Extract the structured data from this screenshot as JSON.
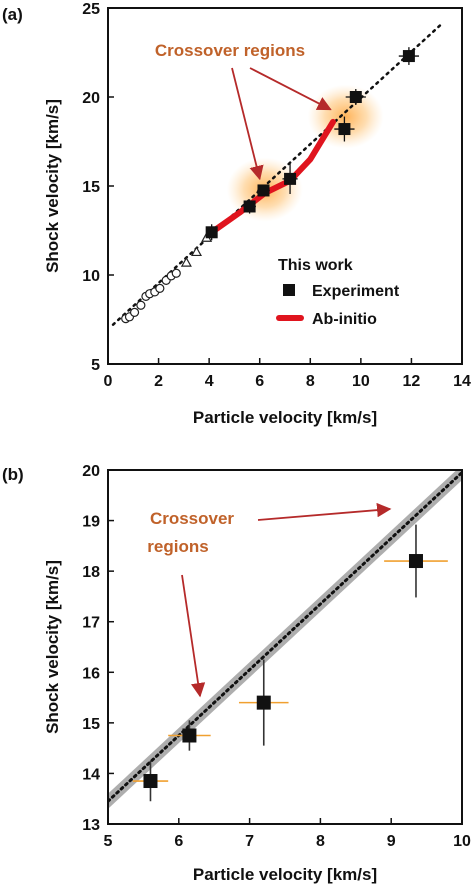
{
  "chart_data": [
    {
      "panel_label": "(a)",
      "type": "scatter",
      "xlabel": "Particle velocity [km/s]",
      "ylabel": "Shock velocity [km/s]",
      "xlim": [
        0,
        14
      ],
      "ylim": [
        5,
        25
      ],
      "xticks": [
        0,
        2,
        4,
        6,
        8,
        10,
        12,
        14
      ],
      "yticks": [
        5,
        10,
        15,
        20,
        25
      ],
      "annotation": "Crossover regions",
      "legend": {
        "title": "This work",
        "placement": "bottom-right",
        "entries": [
          {
            "label": "Experiment",
            "marker": "square",
            "color": "#111111"
          },
          {
            "label": "Ab-initio",
            "marker": "line",
            "color": "#e0141e"
          }
        ]
      },
      "colors": {
        "experiment": "#111111",
        "ab_initio": "#e0141e",
        "fit": "#111111",
        "annotation": "#c0622a",
        "arrow": "#b52a2a",
        "glow": "#ffa53c"
      },
      "series": [
        {
          "name": "Experiment",
          "kind": "square",
          "points": [
            {
              "x": 4.1,
              "y": 12.4,
              "xerr": 0.2,
              "yerr": 0.45
            },
            {
              "x": 5.6,
              "y": 13.85,
              "xerr": 0.25,
              "yerr": 0.4
            },
            {
              "x": 6.15,
              "y": 14.75,
              "xerr": 0.25,
              "yerr": 0.3
            },
            {
              "x": 7.2,
              "y": 15.4,
              "xerr": 0.3,
              "yerr": 0.85
            },
            {
              "x": 9.35,
              "y": 18.2,
              "xerr": 0.4,
              "yerr": 0.7
            },
            {
              "x": 9.8,
              "y": 20.0,
              "xerr": 0.4,
              "yerr": 0.45
            },
            {
              "x": 11.9,
              "y": 22.3,
              "xerr": 0.4,
              "yerr": 0.5
            }
          ]
        },
        {
          "name": "Ab-initio",
          "kind": "line",
          "points": [
            {
              "x": 4.2,
              "y": 12.5
            },
            {
              "x": 5.2,
              "y": 13.5
            },
            {
              "x": 6.2,
              "y": 14.6
            },
            {
              "x": 7.2,
              "y": 15.3
            },
            {
              "x": 8.0,
              "y": 16.5
            },
            {
              "x": 8.9,
              "y": 18.6
            }
          ]
        },
        {
          "kind": "open-circle",
          "points": [
            {
              "x": 0.7,
              "y": 7.55
            },
            {
              "x": 0.85,
              "y": 7.65
            },
            {
              "x": 1.05,
              "y": 7.9
            },
            {
              "x": 1.3,
              "y": 8.3
            },
            {
              "x": 1.5,
              "y": 8.8
            },
            {
              "x": 1.65,
              "y": 8.95
            },
            {
              "x": 1.85,
              "y": 9.05
            },
            {
              "x": 2.05,
              "y": 9.25
            },
            {
              "x": 2.3,
              "y": 9.7
            },
            {
              "x": 2.5,
              "y": 9.95
            },
            {
              "x": 2.7,
              "y": 10.1
            }
          ]
        },
        {
          "kind": "open-triangle",
          "points": [
            {
              "x": 3.1,
              "y": 10.7
            },
            {
              "x": 3.5,
              "y": 11.3
            },
            {
              "x": 3.9,
              "y": 12.1
            }
          ]
        }
      ],
      "fit_line": {
        "intercept": 6.95,
        "slope": 1.3,
        "style": "dotted"
      },
      "crossover_glows": [
        {
          "x": 6.2,
          "y": 14.8
        },
        {
          "x": 9.4,
          "y": 18.9
        }
      ]
    },
    {
      "panel_label": "(b)",
      "type": "scatter",
      "xlabel": "Particle velocity [km/s]",
      "ylabel": "Shock velocity [km/s]",
      "xlim": [
        5,
        10
      ],
      "ylim": [
        13,
        20
      ],
      "xticks": [
        5,
        6,
        7,
        8,
        9,
        10
      ],
      "yticks": [
        13,
        14,
        15,
        16,
        17,
        18,
        19,
        20
      ],
      "annotation_lines": [
        "Crossover",
        "regions"
      ],
      "colors": {
        "experiment": "#111111",
        "xerr": "#f0a030",
        "yerr": "#333333",
        "band": "#a0a0a0",
        "annotation": "#c0622a",
        "arrow": "#b52a2a"
      },
      "series": [
        {
          "name": "Experiment",
          "kind": "square",
          "points": [
            {
              "x": 5.6,
              "y": 13.85,
              "xerr": 0.25,
              "yerr": 0.4
            },
            {
              "x": 6.15,
              "y": 14.75,
              "xerr": 0.3,
              "yerr": 0.3
            },
            {
              "x": 7.2,
              "y": 15.4,
              "xerr": 0.35,
              "yerr": 0.85
            },
            {
              "x": 9.35,
              "y": 18.2,
              "xerr": 0.45,
              "yerr": 0.72
            }
          ]
        }
      ],
      "fit_line": {
        "intercept": 6.95,
        "slope": 1.3,
        "style": "dotted",
        "band": 0.15
      }
    }
  ]
}
